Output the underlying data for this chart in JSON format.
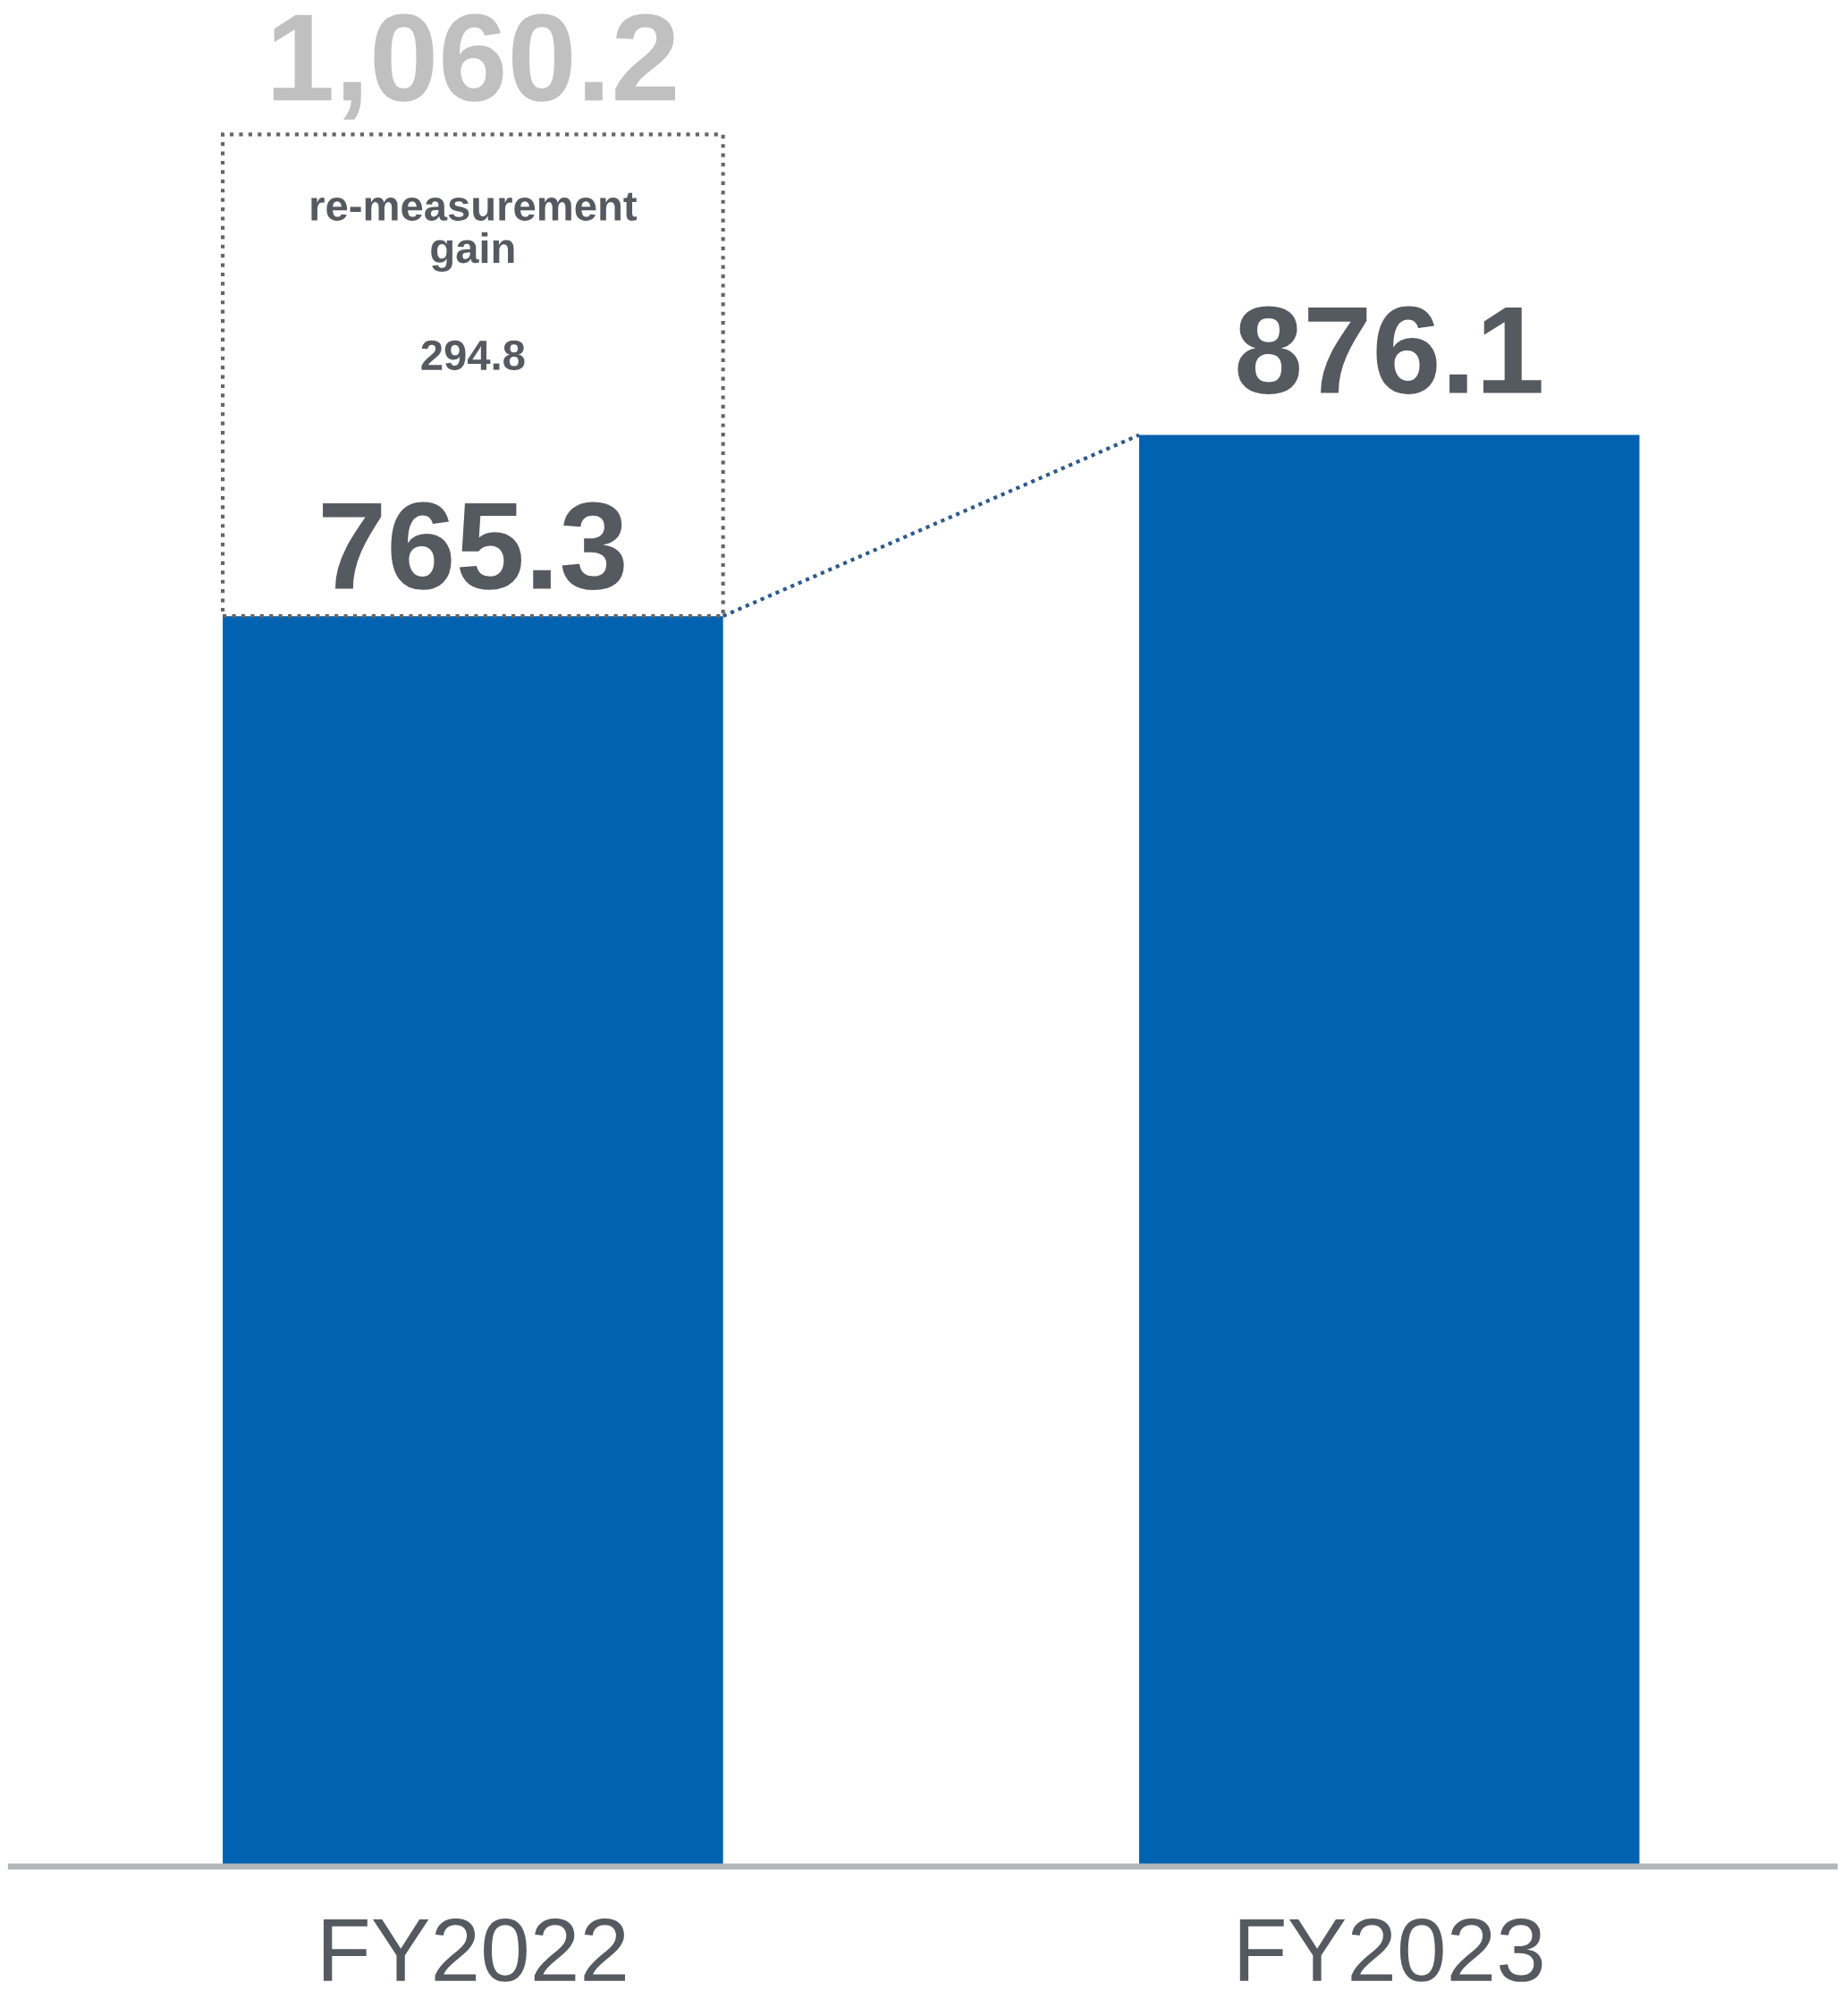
{
  "chart_data": {
    "type": "bar",
    "stacked": true,
    "categories": [
      "FY2022",
      "FY2023"
    ],
    "series": [
      {
        "color": "#0062b0",
        "values": [
          765.3,
          876.1
        ],
        "value_labels": [
          "765.3",
          "876.1"
        ]
      },
      {
        "color": "#666666",
        "line_style": "dotted",
        "values": [
          294.8,
          null
        ],
        "value_labels": [
          "294.8",
          null
        ]
      }
    ],
    "totals": [
      "1,060.2",
      null
    ],
    "annotations": [
      "re-measurement\ngain"
    ],
    "tick_labels": "x",
    "grid": false,
    "legend": false
  }
}
